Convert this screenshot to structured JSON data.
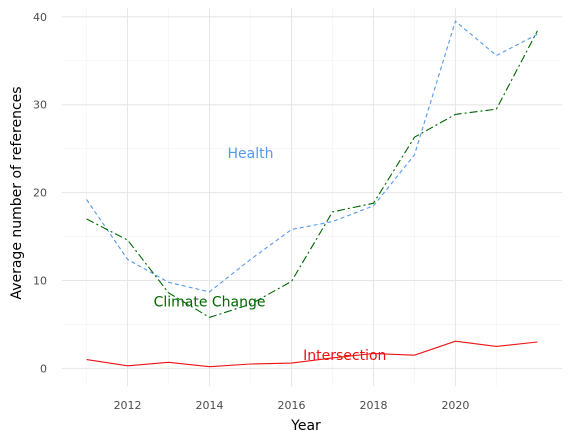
{
  "chart_data": {
    "type": "line",
    "xlabel": "Year",
    "ylabel": "Average number of references",
    "xlim": [
      2010.4,
      2022.6
    ],
    "ylim": [
      -2,
      41
    ],
    "x_ticks": [
      2012,
      2014,
      2016,
      2018,
      2020
    ],
    "y_ticks": [
      0,
      10,
      20,
      30,
      40
    ],
    "grid": true,
    "x": [
      2011,
      2012,
      2013,
      2014,
      2015,
      2016,
      2017,
      2018,
      2019,
      2020,
      2021,
      2022
    ],
    "series": [
      {
        "name": "Health",
        "color": "#5599ee",
        "dash": "4,3",
        "values": [
          19.2,
          12.4,
          9.8,
          8.7,
          12.4,
          15.8,
          16.7,
          18.5,
          24.3,
          39.5,
          35.6,
          38.0
        ],
        "label_pos": [
          2015.0,
          24.5
        ]
      },
      {
        "name": "Climate Change",
        "color": "#006600",
        "dash": "8,3,2,3",
        "values": [
          17.0,
          14.6,
          8.6,
          5.8,
          7.3,
          9.9,
          17.8,
          18.8,
          26.3,
          28.9,
          29.5,
          38.4
        ],
        "label_pos": [
          2014.0,
          7.6
        ]
      },
      {
        "name": "Intersection",
        "color": "#ee1111",
        "dash": "",
        "values": [
          1.0,
          0.3,
          0.7,
          0.2,
          0.5,
          0.6,
          1.2,
          1.7,
          1.5,
          3.1,
          2.5,
          3.0
        ],
        "label_pos": [
          2017.3,
          1.5
        ]
      }
    ]
  }
}
